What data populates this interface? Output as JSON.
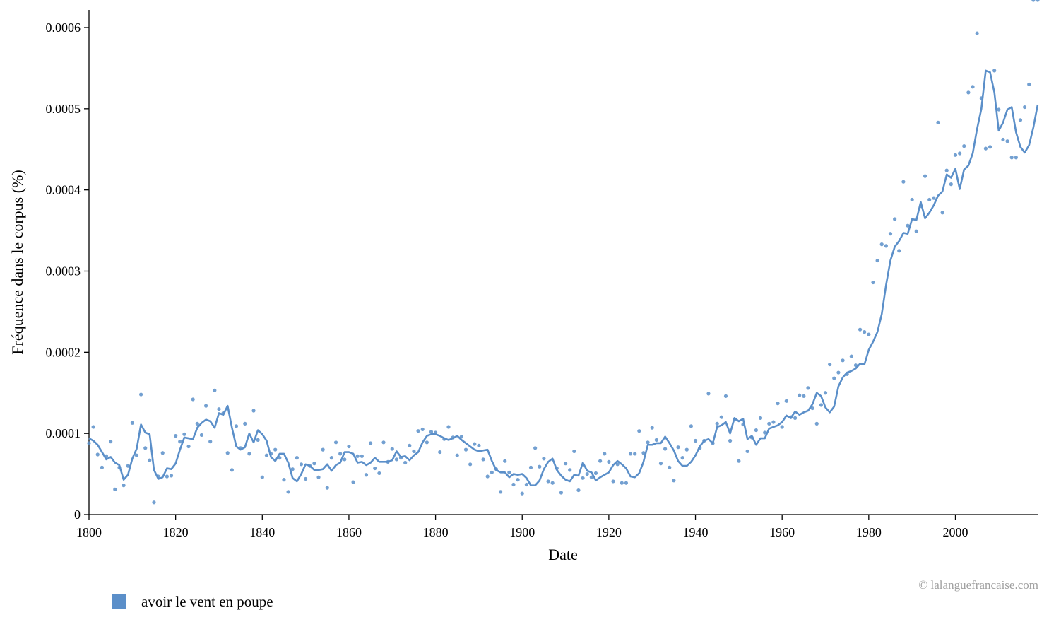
{
  "chart_data": {
    "type": "scatter",
    "title": "",
    "xlabel": "Date",
    "ylabel": "Fréquence dans le corpus (%)",
    "xlim": [
      1800,
      2019
    ],
    "ylim": [
      0,
      0.00062
    ],
    "xticks": [
      1800,
      1820,
      1840,
      1860,
      1880,
      1900,
      1920,
      1940,
      1960,
      1980,
      2000
    ],
    "yticks": [
      {
        "value": 0,
        "label": "0"
      },
      {
        "value": 0.0001,
        "label": "0.0001"
      },
      {
        "value": 0.0002,
        "label": "0.0002"
      },
      {
        "value": 0.0003,
        "label": "0.0003"
      },
      {
        "value": 0.0004,
        "label": "0.0004"
      },
      {
        "value": 0.0005,
        "label": "0.0005"
      },
      {
        "value": 0.0006,
        "label": "0.0006"
      }
    ],
    "grid": false,
    "legend_position": "bottom-left",
    "credit": "© lalanguefrancaise.com",
    "series": [
      {
        "name": "avoir le vent en poupe",
        "color": "#5b8fc9",
        "x": [
          1800,
          1801,
          1802,
          1803,
          1804,
          1805,
          1806,
          1807,
          1808,
          1809,
          1810,
          1811,
          1812,
          1813,
          1814,
          1815,
          1816,
          1817,
          1818,
          1819,
          1820,
          1821,
          1822,
          1823,
          1824,
          1825,
          1826,
          1827,
          1828,
          1829,
          1830,
          1831,
          1832,
          1833,
          1834,
          1835,
          1836,
          1837,
          1838,
          1839,
          1840,
          1841,
          1842,
          1843,
          1844,
          1845,
          1846,
          1847,
          1848,
          1849,
          1850,
          1851,
          1852,
          1853,
          1854,
          1855,
          1856,
          1857,
          1858,
          1859,
          1860,
          1861,
          1862,
          1863,
          1864,
          1865,
          1866,
          1867,
          1868,
          1869,
          1870,
          1871,
          1872,
          1873,
          1874,
          1875,
          1876,
          1877,
          1878,
          1879,
          1880,
          1881,
          1882,
          1883,
          1884,
          1885,
          1886,
          1887,
          1888,
          1889,
          1890,
          1891,
          1892,
          1893,
          1894,
          1895,
          1896,
          1897,
          1898,
          1899,
          1900,
          1901,
          1902,
          1903,
          1904,
          1905,
          1906,
          1907,
          1908,
          1909,
          1910,
          1911,
          1912,
          1913,
          1914,
          1915,
          1916,
          1917,
          1918,
          1919,
          1920,
          1921,
          1922,
          1923,
          1924,
          1925,
          1926,
          1927,
          1928,
          1929,
          1930,
          1931,
          1932,
          1933,
          1934,
          1935,
          1936,
          1937,
          1938,
          1939,
          1940,
          1941,
          1942,
          1943,
          1944,
          1945,
          1946,
          1947,
          1948,
          1949,
          1950,
          1951,
          1952,
          1953,
          1954,
          1955,
          1956,
          1957,
          1958,
          1959,
          1960,
          1961,
          1962,
          1963,
          1964,
          1965,
          1966,
          1967,
          1968,
          1969,
          1970,
          1971,
          1972,
          1973,
          1974,
          1975,
          1976,
          1977,
          1978,
          1979,
          1980,
          1981,
          1982,
          1983,
          1984,
          1985,
          1986,
          1987,
          1988,
          1989,
          1990,
          1991,
          1992,
          1993,
          1994,
          1995,
          1996,
          1997,
          1998,
          1999,
          2000,
          2001,
          2002,
          2003,
          2004,
          2005,
          2006,
          2007,
          2008,
          2009,
          2010,
          2011,
          2012,
          2013,
          2014,
          2015,
          2016,
          2017,
          2018,
          2019
        ],
        "points": [
          8.8e-05,
          0.000108,
          7.4e-05,
          5.8e-05,
          7.2e-05,
          9e-05,
          3.1e-05,
          5.8e-05,
          3.6e-05,
          6e-05,
          0.000113,
          7.3e-05,
          0.000148,
          8.2e-05,
          6.7e-05,
          1.5e-05,
          4.7e-05,
          7.6e-05,
          4.7e-05,
          4.8e-05,
          9.7e-05,
          9e-05,
          9.9e-05,
          8.4e-05,
          0.000142,
          0.000112,
          9.8e-05,
          0.000134,
          9e-05,
          0.000153,
          0.00013,
          0.000125,
          7.6e-05,
          5.5e-05,
          0.000109,
          8.2e-05,
          0.000112,
          7.5e-05,
          0.000128,
          9.2e-05,
          4.6e-05,
          7.3e-05,
          7.5e-05,
          8e-05,
          7e-05,
          4.3e-05,
          2.8e-05,
          5.6e-05,
          7e-05,
          6.2e-05,
          4.4e-05,
          6e-05,
          6.3e-05,
          4.6e-05,
          8e-05,
          3.3e-05,
          7e-05,
          8.9e-05,
          7.5e-05,
          6.8e-05,
          8.4e-05,
          4e-05,
          7.2e-05,
          7.2e-05,
          4.9e-05,
          8.8e-05,
          5.7e-05,
          5.1e-05,
          8.9e-05,
          6.5e-05,
          8.1e-05,
          6.8e-05,
          7e-05,
          6.4e-05,
          8.5e-05,
          7.8e-05,
          0.000103,
          0.000105,
          8.9e-05,
          0.000102,
          0.000101,
          7.7e-05,
          9.3e-05,
          0.000108,
          9.5e-05,
          7.3e-05,
          9.6e-05,
          8e-05,
          6.2e-05,
          8.7e-05,
          8.5e-05,
          6.8e-05,
          4.7e-05,
          5.2e-05,
          5.6e-05,
          2.8e-05,
          6.6e-05,
          5.2e-05,
          3.7e-05,
          4.3e-05,
          2.6e-05,
          3.7e-05,
          5.8e-05,
          8.2e-05,
          5.9e-05,
          6.9e-05,
          4.1e-05,
          3.9e-05,
          5.7e-05,
          2.7e-05,
          6.3e-05,
          5.5e-05,
          7.8e-05,
          3e-05,
          4.5e-05,
          5e-05,
          4.6e-05,
          5.1e-05,
          6.6e-05,
          7.5e-05,
          6.5e-05,
          4.1e-05,
          6.2e-05,
          3.9e-05,
          3.9e-05,
          7.5e-05,
          7.5e-05,
          0.000103,
          7.6e-05,
          8.9e-05,
          0.000107,
          9.2e-05,
          6.3e-05,
          8.1e-05,
          5.8e-05,
          4.2e-05,
          8.3e-05,
          7e-05,
          8e-05,
          0.000109,
          9.1e-05,
          8.2e-05,
          9.1e-05,
          0.000149,
          8.8e-05,
          0.000112,
          0.00012,
          0.000146,
          9.1e-05,
          0.000117,
          6.6e-05,
          0.000111,
          7.8e-05,
          9.5e-05,
          0.000104,
          0.000119,
          0.000101,
          0.000112,
          0.000114,
          0.000137,
          0.000108,
          0.00014,
          0.00012,
          0.000119,
          0.000147,
          0.000146,
          0.000156,
          0.000131,
          0.000112,
          0.000135,
          0.00015,
          0.000185,
          0.000168,
          0.000175,
          0.00019,
          0.000173,
          0.000195,
          0.000184,
          0.000228,
          0.000225,
          0.000222,
          0.000286,
          0.000313,
          0.000333,
          0.000331,
          0.000346,
          0.000364,
          0.000325,
          0.00041,
          0.000356,
          0.000388,
          0.000349,
          0.00038,
          0.000417,
          0.000388,
          0.00039,
          0.000483,
          0.000372,
          0.000424,
          0.000407,
          0.000443,
          0.000445,
          0.000454,
          0.00052,
          0.000527,
          0.000593,
          0.000513,
          0.000451,
          0.000453,
          0.000547,
          0.000499,
          0.000462,
          0.00046,
          0.00044,
          0.00044,
          0.000486,
          0.000502,
          0.00053
        ],
        "smoothed": [
          9.4e-05,
          9.1e-05,
          8.6e-05,
          7.7e-05,
          6.8e-05,
          7.1e-05,
          6.4e-05,
          6.1e-05,
          4.3e-05,
          4.9e-05,
          6.9e-05,
          8.1e-05,
          0.000111,
          0.000101,
          9.9e-05,
          5.5e-05,
          4.4e-05,
          4.6e-05,
          5.7e-05,
          5.6e-05,
          6.3e-05,
          8e-05,
          9.5e-05,
          9.4e-05,
          9.3e-05,
          0.000107,
          0.000113,
          0.000117,
          0.000115,
          0.000107,
          0.000125,
          0.000123,
          0.000134,
          0.000107,
          8.4e-05,
          8e-05,
          8.3e-05,
          0.0001,
          8.9e-05,
          0.000104,
          9.9e-05,
          9.1e-05,
          7.1e-05,
          6.6e-05,
          7.5e-05,
          7.5e-05,
          6.4e-05,
          4.5e-05,
          4.1e-05,
          5e-05,
          6.2e-05,
          6e-05,
          5.5e-05,
          5.5e-05,
          5.6e-05,
          6.2e-05,
          5.4e-05,
          6.1e-05,
          6.4e-05,
          7.7e-05,
          7.7e-05,
          7.5e-05,
          6.4e-05,
          6.5e-05,
          6.1e-05,
          6.4e-05,
          7e-05,
          6.5e-05,
          6.5e-05,
          6.5e-05,
          6.7e-05,
          7.8e-05,
          7.1e-05,
          7.2e-05,
          6.7e-05,
          7.3e-05,
          7.7e-05,
          8.9e-05,
          9.7e-05,
          9.9e-05,
          9.9e-05,
          9.7e-05,
          9.4e-05,
          9.2e-05,
          9.4e-05,
          9.7e-05,
          9.2e-05,
          8.8e-05,
          8.4e-05,
          8e-05,
          7.8e-05,
          7.9e-05,
          8e-05,
          6.6e-05,
          5.5e-05,
          5.2e-05,
          5.2e-05,
          4.6e-05,
          5e-05,
          4.9e-05,
          5e-05,
          4.5e-05,
          3.6e-05,
          3.6e-05,
          4.2e-05,
          5.6e-05,
          6.5e-05,
          6.9e-05,
          5.5e-05,
          4.8e-05,
          4.3e-05,
          4.1e-05,
          4.9e-05,
          4.8e-05,
          6.4e-05,
          5.4e-05,
          5.2e-05,
          4.2e-05,
          4.6e-05,
          4.9e-05,
          5.2e-05,
          6.1e-05,
          6.6e-05,
          6.2e-05,
          5.7e-05,
          4.7e-05,
          4.6e-05,
          5.1e-05,
          6.5e-05,
          8.6e-05,
          8.6e-05,
          8.8e-05,
          8.8e-05,
          9.6e-05,
          8.8e-05,
          7.9e-05,
          6.6e-05,
          6e-05,
          6e-05,
          6.5e-05,
          7.3e-05,
          8.4e-05,
          9.1e-05,
          9.3e-05,
          8.8e-05,
          0.000108,
          0.00011,
          0.000114,
          0.0001,
          0.000119,
          0.000115,
          0.000118,
          9.3e-05,
          9.7e-05,
          8.6e-05,
          9.4e-05,
          9.4e-05,
          0.000106,
          0.000108,
          0.00011,
          0.000114,
          0.000122,
          0.000119,
          0.000127,
          0.000123,
          0.000126,
          0.000128,
          0.000136,
          0.00015,
          0.000146,
          0.000132,
          0.000126,
          0.000133,
          0.000158,
          0.000169,
          0.000175,
          0.000177,
          0.00018,
          0.000186,
          0.000185,
          0.000203,
          0.000213,
          0.000225,
          0.000247,
          0.000283,
          0.000313,
          0.00033,
          0.000337,
          0.000347,
          0.000346,
          0.000364,
          0.000363,
          0.000385,
          0.000365,
          0.000372,
          0.000381,
          0.000393,
          0.000398,
          0.000419,
          0.000415,
          0.000426,
          0.000401,
          0.000425,
          0.00043,
          0.000445,
          0.000475,
          0.0005,
          0.000547,
          0.000545,
          0.00052,
          0.000473,
          0.000483,
          0.000499,
          0.000502,
          0.000471,
          0.000453,
          0.000446,
          0.000455,
          0.000477,
          0.000505,
          0.000519
        ]
      }
    ]
  }
}
